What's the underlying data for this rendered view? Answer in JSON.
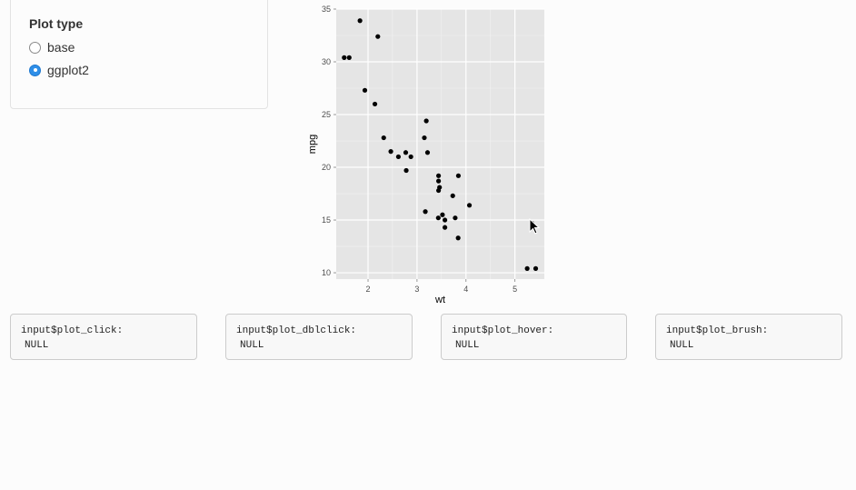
{
  "sidebar": {
    "title": "Plot type",
    "options": [
      {
        "label": "base",
        "selected": false
      },
      {
        "label": "ggplot2",
        "selected": true
      }
    ]
  },
  "chart_data": {
    "type": "scatter",
    "xlabel": "wt",
    "ylabel": "mpg",
    "xlim": [
      1.35,
      5.6
    ],
    "ylim": [
      9.4,
      35
    ],
    "xticks": [
      2,
      3,
      4,
      5
    ],
    "yticks": [
      10,
      15,
      20,
      25,
      30,
      35
    ],
    "grid": true,
    "panel_background": "#e5e5e5",
    "point_color": "#000000",
    "points": [
      {
        "x": 1.513,
        "y": 30.4
      },
      {
        "x": 1.615,
        "y": 30.4
      },
      {
        "x": 1.835,
        "y": 33.9
      },
      {
        "x": 1.935,
        "y": 27.3
      },
      {
        "x": 2.14,
        "y": 26.0
      },
      {
        "x": 2.2,
        "y": 32.4
      },
      {
        "x": 2.32,
        "y": 22.8
      },
      {
        "x": 2.465,
        "y": 21.5
      },
      {
        "x": 2.62,
        "y": 21.0
      },
      {
        "x": 2.77,
        "y": 21.4
      },
      {
        "x": 2.78,
        "y": 19.7
      },
      {
        "x": 2.875,
        "y": 21.0
      },
      {
        "x": 3.15,
        "y": 22.8
      },
      {
        "x": 3.17,
        "y": 15.8
      },
      {
        "x": 3.19,
        "y": 24.4
      },
      {
        "x": 3.215,
        "y": 21.4
      },
      {
        "x": 3.435,
        "y": 15.2
      },
      {
        "x": 3.44,
        "y": 18.7
      },
      {
        "x": 3.44,
        "y": 19.2
      },
      {
        "x": 3.44,
        "y": 17.8
      },
      {
        "x": 3.46,
        "y": 18.1
      },
      {
        "x": 3.52,
        "y": 15.5
      },
      {
        "x": 3.57,
        "y": 14.3
      },
      {
        "x": 3.57,
        "y": 15.0
      },
      {
        "x": 3.73,
        "y": 17.3
      },
      {
        "x": 3.78,
        "y": 15.2
      },
      {
        "x": 3.84,
        "y": 13.3
      },
      {
        "x": 3.845,
        "y": 19.2
      },
      {
        "x": 4.07,
        "y": 16.4
      },
      {
        "x": 5.25,
        "y": 10.4
      },
      {
        "x": 5.424,
        "y": 10.4
      },
      {
        "x": 5.345,
        "y": 14.7
      }
    ]
  },
  "outputs": [
    {
      "label": "input$plot_click:",
      "value": "NULL"
    },
    {
      "label": "input$plot_dblclick:",
      "value": "NULL"
    },
    {
      "label": "input$plot_hover:",
      "value": "NULL"
    },
    {
      "label": "input$plot_brush:",
      "value": "NULL"
    }
  ]
}
